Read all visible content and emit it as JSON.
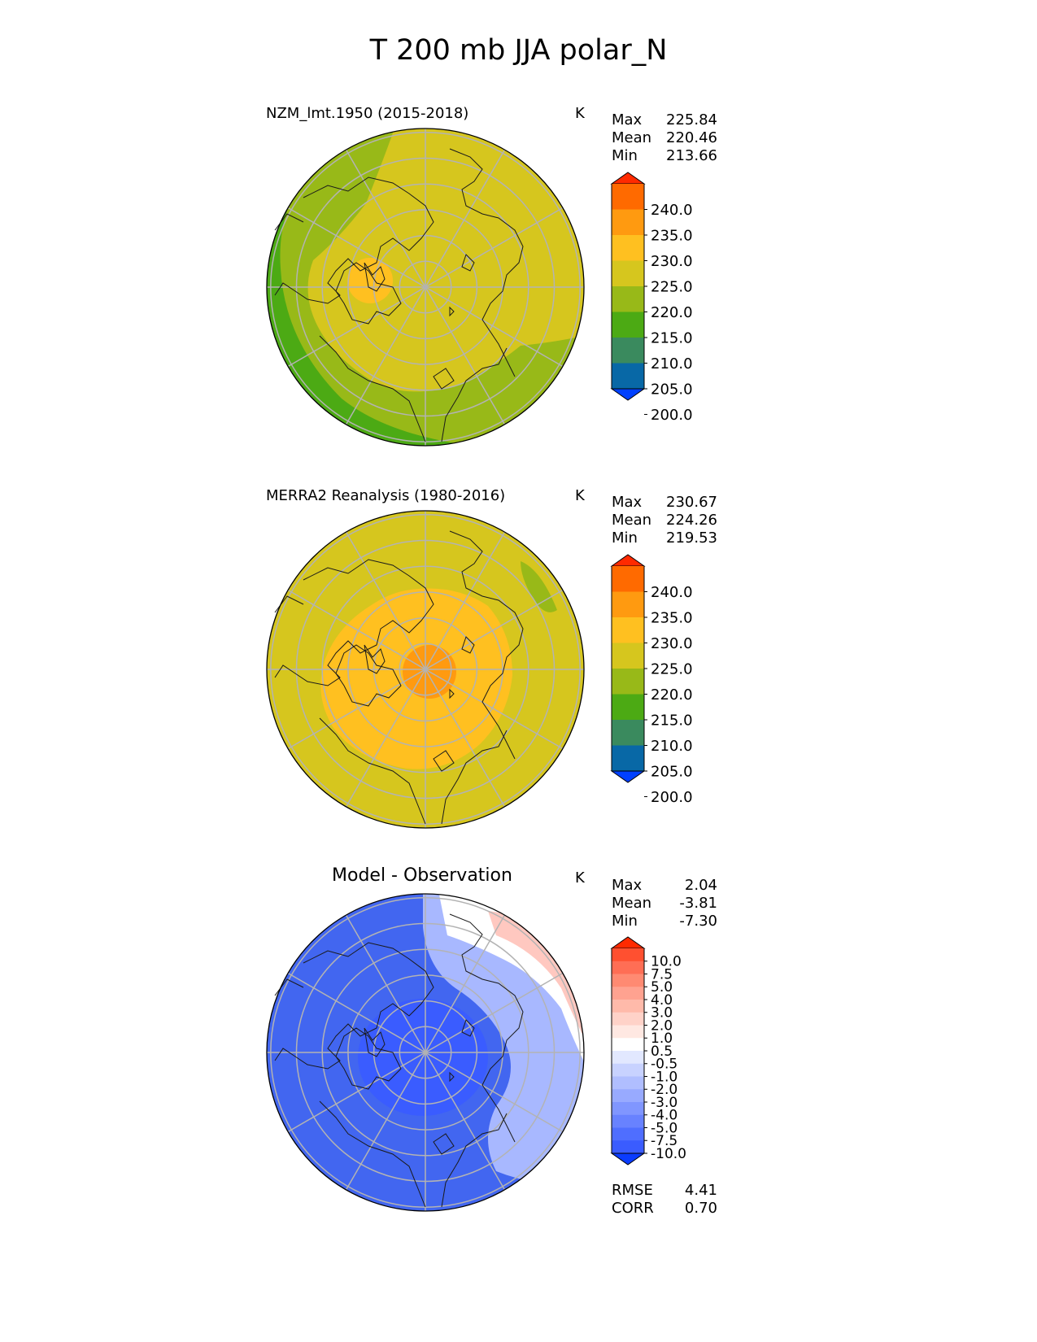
{
  "title": "T 200 mb JJA polar_N",
  "panels": [
    {
      "title": "NZM_lmt.1950 (2015-2018)",
      "unit": "K",
      "stats": [
        {
          "label": "Max",
          "value": "225.84"
        },
        {
          "label": "Mean",
          "value": "220.46"
        },
        {
          "label": "Min",
          "value": "213.66"
        }
      ]
    },
    {
      "title": "MERRA2 Reanalysis (1980-2016)",
      "unit": "K",
      "stats": [
        {
          "label": "Max",
          "value": "230.67"
        },
        {
          "label": "Mean",
          "value": "224.26"
        },
        {
          "label": "Min",
          "value": "219.53"
        }
      ]
    },
    {
      "title": "Model - Observation",
      "unit": "K",
      "stats": [
        {
          "label": "Max",
          "value": "2.04"
        },
        {
          "label": "Mean",
          "value": "-3.81"
        },
        {
          "label": "Min",
          "value": "-7.30"
        }
      ],
      "metrics": [
        {
          "label": "RMSE",
          "value": "4.41"
        },
        {
          "label": "CORR",
          "value": "0.70"
        }
      ]
    }
  ],
  "colorbars": {
    "field": {
      "tick_labels": [
        "240.0",
        "235.0",
        "230.0",
        "225.0",
        "220.0",
        "215.0",
        "210.0",
        "205.0",
        "200.0"
      ],
      "colors_top_to_bottom": [
        "#ff2a00",
        "#ff6a00",
        "#ff9a10",
        "#ffc020",
        "#d6c61e",
        "#98b918",
        "#4caa14",
        "#3a8a5e",
        "#0868a6",
        "#0040ff"
      ]
    },
    "diff": {
      "tick_labels": [
        "10.0",
        "7.5",
        "5.0",
        "4.0",
        "3.0",
        "2.0",
        "1.0",
        "0.5",
        "-0.5",
        "-1.0",
        "-2.0",
        "-3.0",
        "-4.0",
        "-5.0",
        "-7.5",
        "-10.0"
      ],
      "colors_top_to_bottom": [
        "#ff2a00",
        "#ff5030",
        "#ff6e55",
        "#ff8a72",
        "#ffa290",
        "#ffbaaa",
        "#ffd2c8",
        "#ffe8e2",
        "#ffffff",
        "#e2e8ff",
        "#c8d2ff",
        "#b0beff",
        "#98aaff",
        "#8096ff",
        "#6882ff",
        "#4f6eff",
        "#3a5cff",
        "#0a3cff"
      ]
    }
  },
  "map_fields": {
    "panel1": {
      "background": "#98b918",
      "inner": "#d6c61e",
      "outer_band": "#4caa14",
      "hotspot": "#ffc020"
    },
    "panel2": {
      "background": "#d6c61e",
      "warm": "#ffc020",
      "core": "#ff9a10",
      "cool_patch": "#98b918"
    },
    "panel3": {
      "background": "#4266f0",
      "center": "#3a5cff",
      "light": "#a8b8ff",
      "white": "#ffffff",
      "pink": "#ffc8c0"
    }
  }
}
